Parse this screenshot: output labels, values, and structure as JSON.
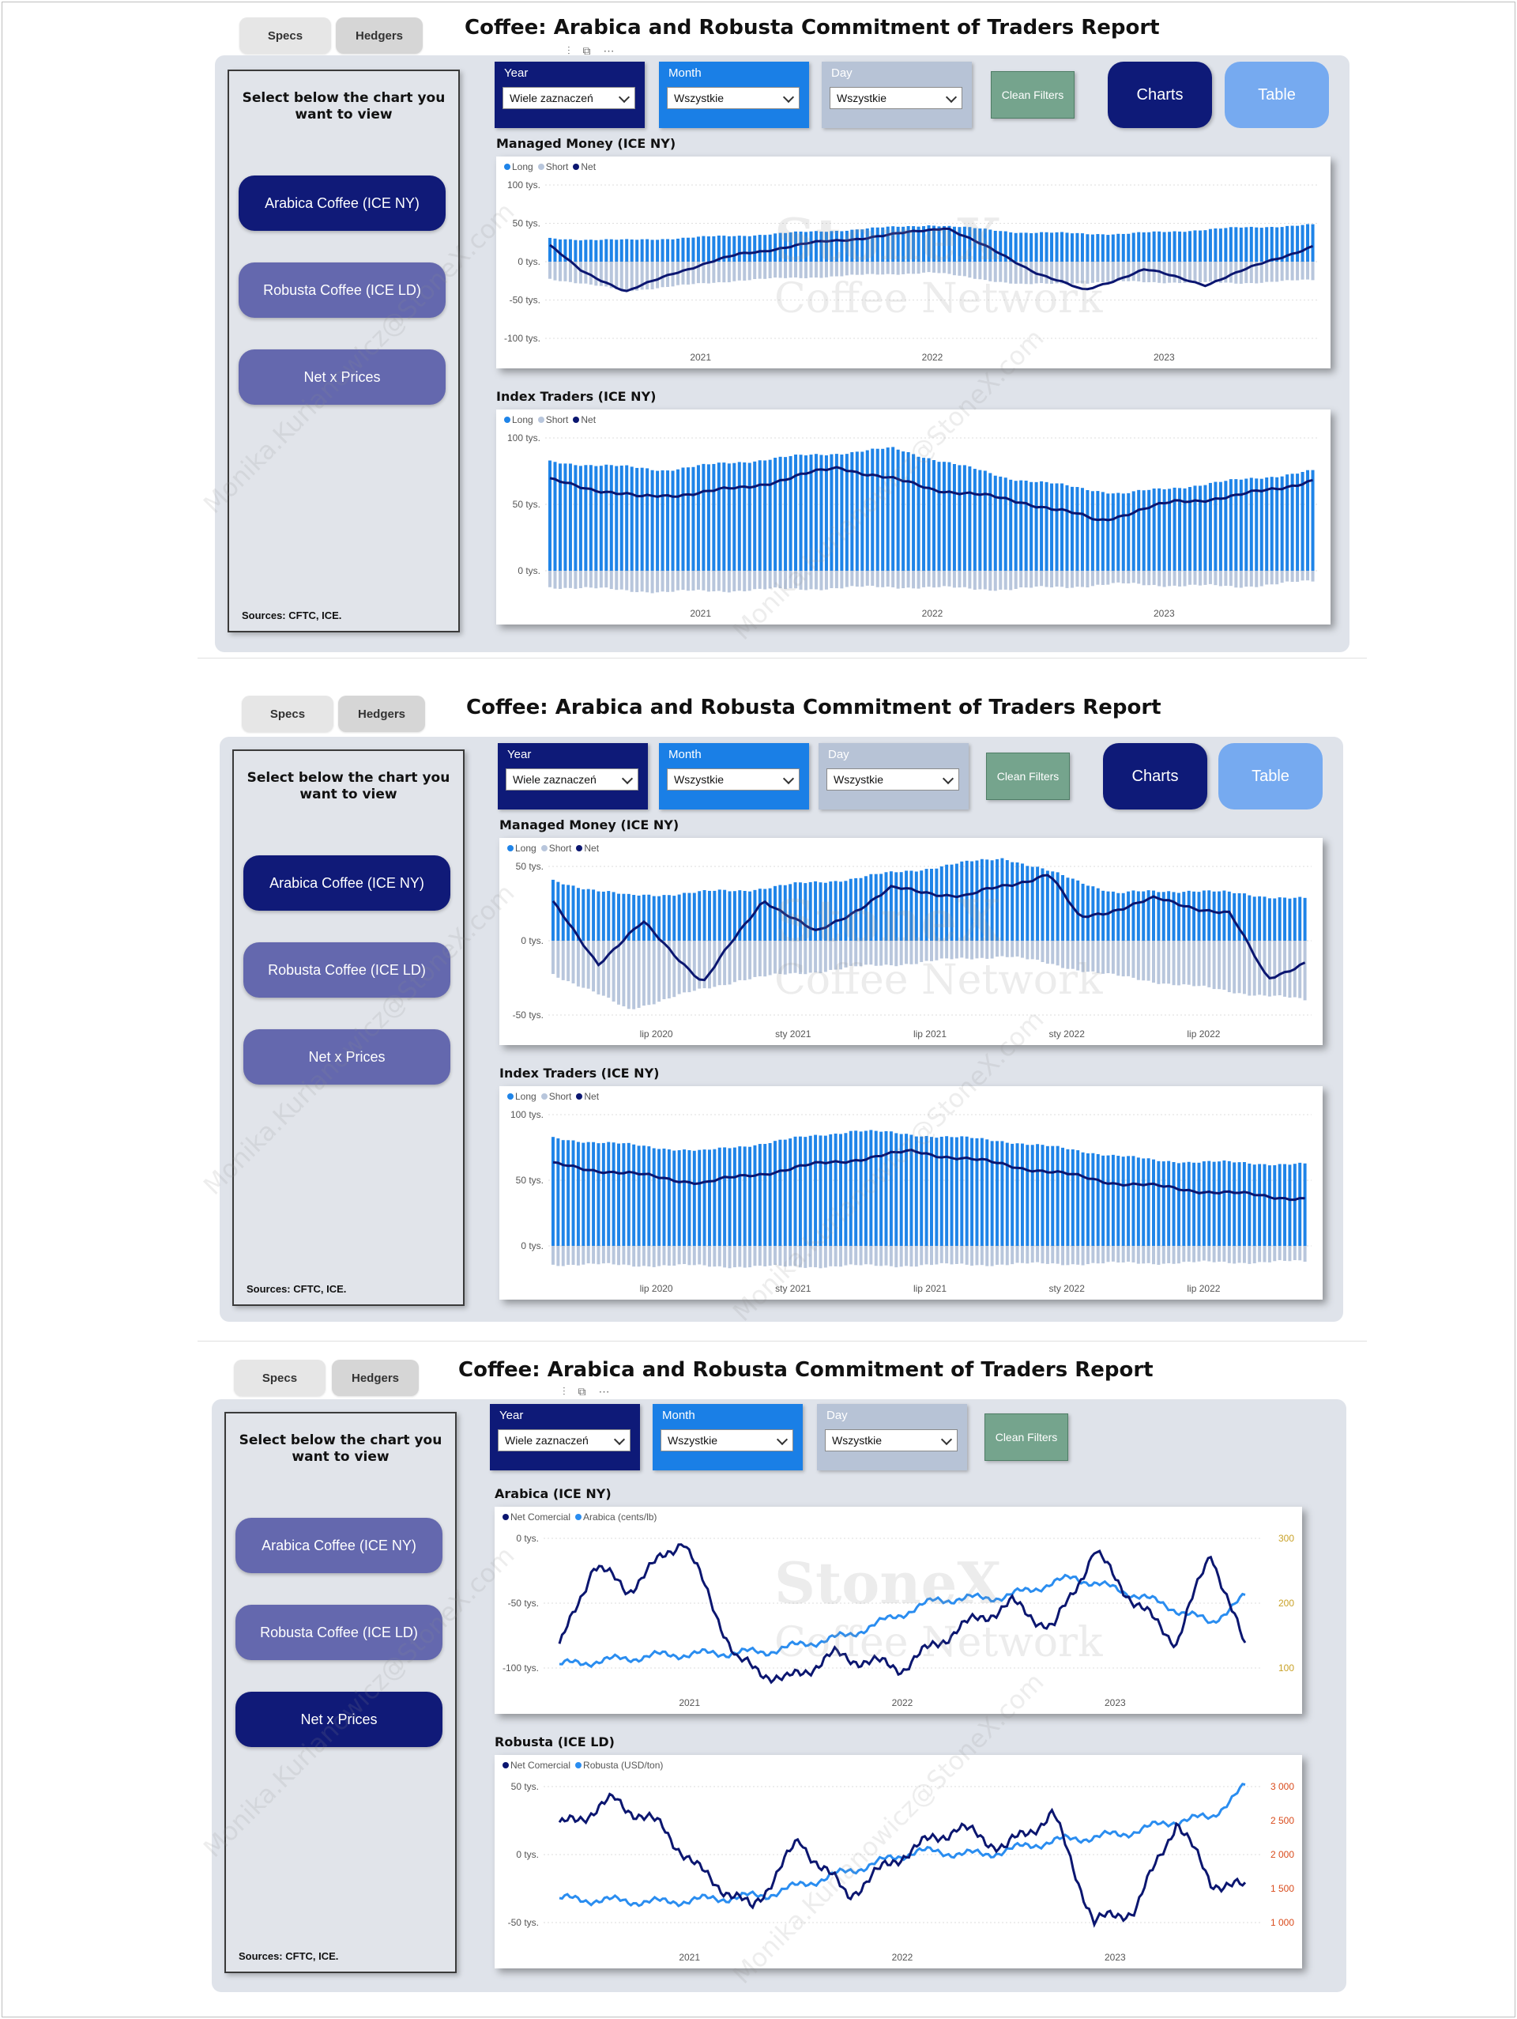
{
  "title": "Coffee: Arabica and Robusta Commitment of Traders Report",
  "tabs": [
    {
      "label": "Specs"
    },
    {
      "label": "Hedgers"
    }
  ],
  "sidebar": {
    "heading": "Select below the chart you want to view",
    "buttons": [
      {
        "label": "Arabica Coffee (ICE NY)"
      },
      {
        "label": "Robusta Coffee (ICE LD)"
      },
      {
        "label": "Net x Prices"
      }
    ],
    "sources": "Sources: CFTC, ICE."
  },
  "filters": {
    "year": {
      "label": "Year",
      "value": "Wiele zaznaczeń"
    },
    "month": {
      "label": "Month",
      "value": "Wszystkie"
    },
    "day": {
      "label": "Day",
      "value": "Wszystkie"
    },
    "clean_label": "Clean Filters"
  },
  "view_buttons": {
    "charts": "Charts",
    "table": "Table"
  },
  "watermark": {
    "brand": "StoneX",
    "sub": "Coffee Network",
    "email": "Monika.Kurianowicz@StoneX.com"
  },
  "colors": {
    "long": "#1f84e8",
    "short": "#b8c6dc",
    "net": "#0b1670",
    "price": "#2a8df0",
    "arabica_axis": "#c9a227",
    "robusta_axis": "#d94b1c",
    "navy": "#0e1a78"
  },
  "legend": {
    "long": "Long",
    "short": "Short",
    "net": "Net",
    "net_comercial": "Net Comercial",
    "arabica": "Arabica (cents/lb)",
    "robusta": "Robusta (USD/ton)"
  },
  "chart_titles": {
    "mm": "Managed Money (ICE NY)",
    "it": "Index Traders (ICE NY)",
    "arabica": "Arabica (ICE NY)",
    "robusta": "Robusta (ICE LD)"
  },
  "chart_data": [
    {
      "type": "bar",
      "title": "Managed Money (ICE NY)",
      "section": 1,
      "x_ticks": [
        "2021",
        "2022",
        "2023"
      ],
      "y_ticks": [
        "100 tys.",
        "50 tys.",
        "0 tys.",
        "-50 tys.",
        "-100 tys."
      ],
      "ylim": [
        -100000,
        100000
      ],
      "series": [
        {
          "name": "Long",
          "points": [
            [
              0,
              30
            ],
            [
              0.1,
              28
            ],
            [
              0.25,
              34
            ],
            [
              0.4,
              42
            ],
            [
              0.5,
              48
            ],
            [
              0.62,
              38
            ],
            [
              0.75,
              36
            ],
            [
              0.9,
              44
            ],
            [
              1,
              48
            ]
          ]
        },
        {
          "name": "Short",
          "points": [
            [
              0,
              -22
            ],
            [
              0.1,
              -38
            ],
            [
              0.25,
              -24
            ],
            [
              0.4,
              -18
            ],
            [
              0.5,
              -14
            ],
            [
              0.62,
              -30
            ],
            [
              0.75,
              -26
            ],
            [
              0.9,
              -28
            ],
            [
              1,
              -24
            ]
          ]
        },
        {
          "name": "Net",
          "points": [
            [
              0,
              20
            ],
            [
              0.04,
              -10
            ],
            [
              0.1,
              -40
            ],
            [
              0.16,
              -15
            ],
            [
              0.25,
              10
            ],
            [
              0.35,
              25
            ],
            [
              0.45,
              35
            ],
            [
              0.52,
              45
            ],
            [
              0.58,
              15
            ],
            [
              0.64,
              -15
            ],
            [
              0.7,
              -38
            ],
            [
              0.78,
              -10
            ],
            [
              0.86,
              -30
            ],
            [
              0.94,
              0
            ],
            [
              1,
              20
            ]
          ]
        }
      ]
    },
    {
      "type": "bar",
      "title": "Index Traders (ICE NY)",
      "section": 1,
      "x_ticks": [
        "2021",
        "2022",
        "2023"
      ],
      "y_ticks": [
        "100 tys.",
        "50 tys.",
        "0 tys."
      ],
      "ylim": [
        -20000,
        100000
      ],
      "series": [
        {
          "name": "Long",
          "points": [
            [
              0,
              82
            ],
            [
              0.15,
              76
            ],
            [
              0.3,
              85
            ],
            [
              0.45,
              92
            ],
            [
              0.6,
              70
            ],
            [
              0.75,
              58
            ],
            [
              0.9,
              68
            ],
            [
              1,
              75
            ]
          ]
        },
        {
          "name": "Short",
          "points": [
            [
              0,
              -12
            ],
            [
              0.15,
              -16
            ],
            [
              0.3,
              -14
            ],
            [
              0.45,
              -12
            ],
            [
              0.6,
              -14
            ],
            [
              0.75,
              -10
            ],
            [
              0.9,
              -12
            ],
            [
              1,
              -8
            ]
          ]
        },
        {
          "name": "Net",
          "points": [
            [
              0,
              68
            ],
            [
              0.12,
              55
            ],
            [
              0.25,
              62
            ],
            [
              0.38,
              78
            ],
            [
              0.5,
              62
            ],
            [
              0.62,
              52
            ],
            [
              0.72,
              38
            ],
            [
              0.82,
              52
            ],
            [
              0.9,
              56
            ],
            [
              1,
              68
            ]
          ]
        }
      ]
    },
    {
      "type": "bar",
      "title": "Managed Money (ICE NY)",
      "section": 2,
      "x_ticks": [
        "lip 2020",
        "sty 2021",
        "lip 2021",
        "sty 2022",
        "lip 2022"
      ],
      "y_ticks": [
        "50 tys.",
        "0 tys.",
        "-50 tys."
      ],
      "ylim": [
        -60000,
        60000
      ],
      "series": [
        {
          "name": "Long",
          "points": [
            [
              0,
              40
            ],
            [
              0.1,
              30
            ],
            [
              0.25,
              34
            ],
            [
              0.4,
              42
            ],
            [
              0.6,
              56
            ],
            [
              0.75,
              32
            ],
            [
              0.85,
              34
            ],
            [
              1,
              28
            ]
          ]
        },
        {
          "name": "Short",
          "points": [
            [
              0,
              -22
            ],
            [
              0.1,
              -46
            ],
            [
              0.25,
              -26
            ],
            [
              0.4,
              -18
            ],
            [
              0.6,
              -10
            ],
            [
              0.75,
              -24
            ],
            [
              0.9,
              -34
            ],
            [
              1,
              -40
            ]
          ]
        },
        {
          "name": "Net",
          "points": [
            [
              0,
              25
            ],
            [
              0.06,
              -15
            ],
            [
              0.12,
              12
            ],
            [
              0.2,
              -28
            ],
            [
              0.28,
              28
            ],
            [
              0.35,
              5
            ],
            [
              0.45,
              35
            ],
            [
              0.55,
              30
            ],
            [
              0.66,
              45
            ],
            [
              0.7,
              15
            ],
            [
              0.8,
              28
            ],
            [
              0.9,
              18
            ],
            [
              0.95,
              -25
            ],
            [
              1,
              -15
            ]
          ]
        }
      ]
    },
    {
      "type": "bar",
      "title": "Index Traders (ICE NY)",
      "section": 2,
      "x_ticks": [
        "lip 2020",
        "sty 2021",
        "lip 2021",
        "sty 2022",
        "lip 2022"
      ],
      "y_ticks": [
        "100 tys.",
        "50 tys.",
        "0 tys."
      ],
      "ylim": [
        -20000,
        100000
      ],
      "series": [
        {
          "name": "Long",
          "points": [
            [
              0,
              82
            ],
            [
              0.2,
              72
            ],
            [
              0.4,
              88
            ],
            [
              0.6,
              80
            ],
            [
              0.8,
              65
            ],
            [
              1,
              62
            ]
          ]
        },
        {
          "name": "Short",
          "points": [
            [
              0,
              -14
            ],
            [
              0.3,
              -16
            ],
            [
              0.6,
              -14
            ],
            [
              1,
              -12
            ]
          ]
        },
        {
          "name": "Net",
          "points": [
            [
              0,
              62
            ],
            [
              0.2,
              48
            ],
            [
              0.35,
              62
            ],
            [
              0.48,
              72
            ],
            [
              0.6,
              62
            ],
            [
              0.75,
              48
            ],
            [
              0.9,
              40
            ],
            [
              1,
              36
            ]
          ]
        }
      ]
    },
    {
      "type": "line",
      "title": "Arabica (ICE NY)",
      "section": 3,
      "x_ticks": [
        "2021",
        "2022",
        "2023"
      ],
      "y_ticks": [
        "0 tys.",
        "-50 tys.",
        "-100 tys."
      ],
      "y2_ticks": [
        "300",
        "200",
        "100"
      ],
      "series": [
        {
          "name": "Net Comercial",
          "points": [
            [
              0,
              -85
            ],
            [
              0.05,
              -20
            ],
            [
              0.1,
              -40
            ],
            [
              0.18,
              0
            ],
            [
              0.26,
              -95
            ],
            [
              0.33,
              -110
            ],
            [
              0.4,
              -90
            ],
            [
              0.5,
              -100
            ],
            [
              0.58,
              -70
            ],
            [
              0.66,
              -50
            ],
            [
              0.72,
              -70
            ],
            [
              0.78,
              -10
            ],
            [
              0.84,
              -50
            ],
            [
              0.9,
              -80
            ],
            [
              0.95,
              -10
            ],
            [
              1,
              -85
            ]
          ]
        },
        {
          "name": "Arabica (cents/lb)",
          "points": [
            [
              0,
              105
            ],
            [
              0.15,
              120
            ],
            [
              0.3,
              125
            ],
            [
              0.42,
              150
            ],
            [
              0.55,
              205
            ],
            [
              0.65,
              210
            ],
            [
              0.75,
              240
            ],
            [
              0.85,
              210
            ],
            [
              0.95,
              170
            ],
            [
              1,
              210
            ]
          ]
        }
      ]
    },
    {
      "type": "line",
      "title": "Robusta (ICE LD)",
      "section": 3,
      "x_ticks": [
        "2021",
        "2022",
        "2023"
      ],
      "y_ticks": [
        "50 tys.",
        "0 tys.",
        "-50 tys."
      ],
      "y2_ticks": [
        "3 000",
        "2 500",
        "2 000",
        "1 500",
        "1 000"
      ],
      "series": [
        {
          "name": "Net Comercial",
          "points": [
            [
              0,
              20
            ],
            [
              0.08,
              40
            ],
            [
              0.15,
              20
            ],
            [
              0.2,
              -10
            ],
            [
              0.28,
              -40
            ],
            [
              0.35,
              10
            ],
            [
              0.42,
              -30
            ],
            [
              0.5,
              0
            ],
            [
              0.58,
              20
            ],
            [
              0.65,
              5
            ],
            [
              0.72,
              30
            ],
            [
              0.78,
              -50
            ],
            [
              0.84,
              -40
            ],
            [
              0.9,
              25
            ],
            [
              0.95,
              -20
            ],
            [
              1,
              -25
            ]
          ]
        },
        {
          "name": "Robusta (USD/ton)",
          "points": [
            [
              0,
              1350
            ],
            [
              0.15,
              1300
            ],
            [
              0.3,
              1400
            ],
            [
              0.42,
              1750
            ],
            [
              0.52,
              2050
            ],
            [
              0.62,
              2000
            ],
            [
              0.72,
              2200
            ],
            [
              0.82,
              2300
            ],
            [
              0.9,
              2500
            ],
            [
              0.95,
              2550
            ],
            [
              1,
              3000
            ]
          ]
        }
      ]
    }
  ]
}
